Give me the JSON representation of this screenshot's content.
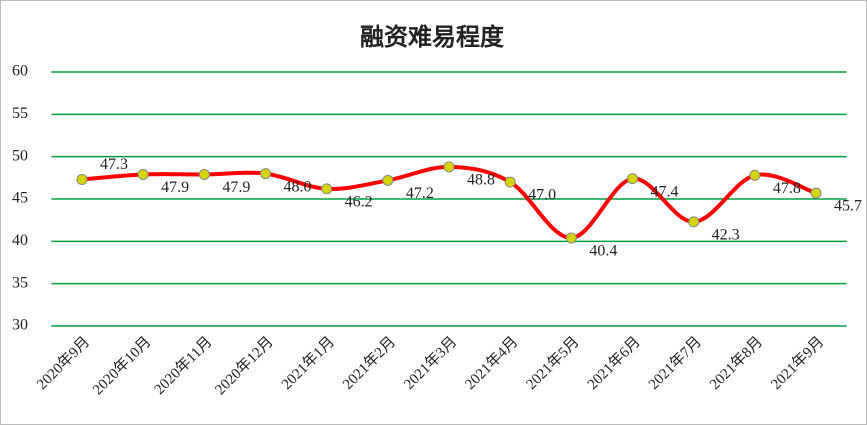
{
  "chart_data": {
    "type": "line",
    "title": "融资难易程度",
    "categories": [
      "2020年9月",
      "2020年10月",
      "2020年11月",
      "2020年12月",
      "2021年1月",
      "2021年2月",
      "2021年3月",
      "2021年4月",
      "2021年5月",
      "2021年6月",
      "2021年7月",
      "2021年8月",
      "2021年9月"
    ],
    "series": [
      {
        "color": "#ff0000",
        "values": [
          47.3,
          47.9,
          47.9,
          48.0,
          46.2,
          47.2,
          48.8,
          47.0,
          40.4,
          47.4,
          42.3,
          47.8,
          45.7
        ],
        "value_labels": [
          "47.3",
          "47.9",
          "47.9",
          "48.0",
          "46.2",
          "47.2",
          "48.8",
          "47.0",
          "40.4",
          "47.4",
          "42.3",
          "47.8",
          "45.7"
        ]
      }
    ],
    "ylim": [
      30,
      60
    ],
    "yticks": [
      30,
      35,
      40,
      45,
      50,
      55,
      60
    ],
    "grid": true,
    "grid_color": "#00a040",
    "marker_color": "#d4d400"
  }
}
